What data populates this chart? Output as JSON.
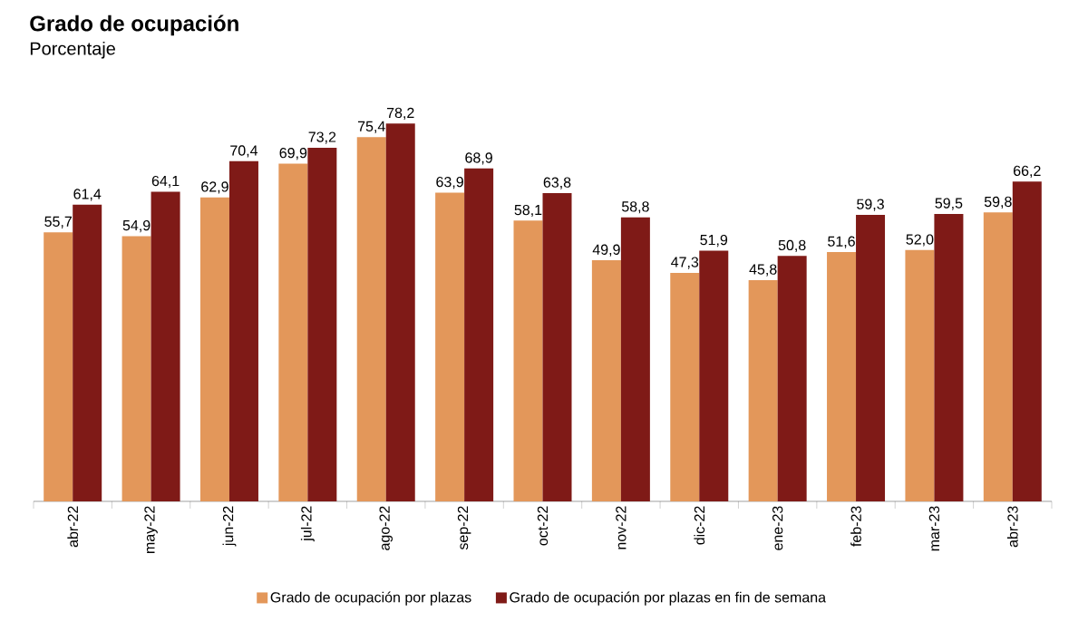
{
  "chart_data": {
    "type": "bar",
    "title": "Grado de ocupación",
    "subtitle": "Porcentaje",
    "categories": [
      "abr-22",
      "may-22",
      "jun-22",
      "jul-22",
      "ago-22",
      "sep-22",
      "oct-22",
      "nov-22",
      "dic-22",
      "ene-23",
      "feb-23",
      "mar-23",
      "abr-23"
    ],
    "series": [
      {
        "name": "Grado de ocupación por plazas",
        "color": "#e3975a",
        "values": [
          55.7,
          54.9,
          62.9,
          69.9,
          75.4,
          63.9,
          58.1,
          49.9,
          47.3,
          45.8,
          51.6,
          52.0,
          59.8
        ],
        "value_labels": [
          "55,7",
          "54,9",
          "62,9",
          "69,9",
          "75,4",
          "63,9",
          "58,1",
          "49,9",
          "47,3",
          "45,8",
          "51,6",
          "52,0",
          "59,8"
        ]
      },
      {
        "name": "Grado de ocupación por plazas en fin de semana",
        "color": "#7f1a17",
        "values": [
          61.4,
          64.1,
          70.4,
          73.2,
          78.2,
          68.9,
          63.8,
          58.8,
          51.9,
          50.8,
          59.3,
          59.5,
          66.2
        ],
        "value_labels": [
          "61,4",
          "64,1",
          "70,4",
          "73,2",
          "78,2",
          "68,9",
          "63,8",
          "58,8",
          "51,9",
          "50,8",
          "59,3",
          "59,5",
          "66,2"
        ]
      }
    ],
    "legend": "bottom",
    "tick_labels": "x"
  }
}
